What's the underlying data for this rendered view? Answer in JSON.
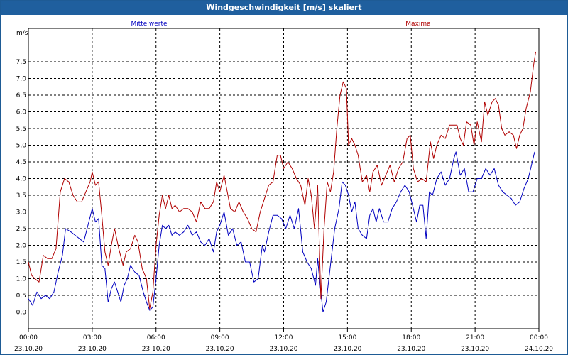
{
  "window": {
    "title": "Windgeschwindigkeit [m/s] skaliert"
  },
  "colors": {
    "title_bar": "#1f5f9e",
    "mittel": "#0000c0",
    "maxima": "#b00000",
    "grid": "#000000"
  },
  "chart_data": {
    "type": "line",
    "title": "Windgeschwindigkeit [m/s] skaliert",
    "ylabel": "m/s",
    "ylim": [
      -0.5,
      8.5
    ],
    "yticks": [
      "0,0",
      "0,5",
      "1,0",
      "1,5",
      "2,0",
      "2,5",
      "3,0",
      "3,5",
      "4,0",
      "4,5",
      "5,0",
      "5,5",
      "6,0",
      "6,5",
      "7,0",
      "7,5"
    ],
    "ytick_values": [
      0,
      0.5,
      1,
      1.5,
      2,
      2.5,
      3,
      3.5,
      4,
      4.5,
      5,
      5.5,
      6,
      6.5,
      7,
      7.5
    ],
    "xlim": [
      0,
      24
    ],
    "xticks": [
      {
        "time": "00:00",
        "date": "23.10.20"
      },
      {
        "time": "03:00",
        "date": "23.10.20"
      },
      {
        "time": "06:00",
        "date": "23.10.20"
      },
      {
        "time": "09:00",
        "date": "23.10.20"
      },
      {
        "time": "12:00",
        "date": "23.10.20"
      },
      {
        "time": "15:00",
        "date": "23.10.20"
      },
      {
        "time": "18:00",
        "date": "23.10.20"
      },
      {
        "time": "21:00",
        "date": "23.10.20"
      },
      {
        "time": "00:00",
        "date": "24.10.20"
      }
    ],
    "xtick_hours": [
      0,
      3,
      6,
      9,
      12,
      15,
      18,
      21,
      24
    ],
    "grid": true,
    "series": [
      {
        "name": "Mittelwerte",
        "color": "#0000c0",
        "points": [
          [
            0,
            0.4
          ],
          [
            0.2,
            0.2
          ],
          [
            0.4,
            0.6
          ],
          [
            0.6,
            0.4
          ],
          [
            0.8,
            0.5
          ],
          [
            1,
            0.4
          ],
          [
            1.2,
            0.6
          ],
          [
            1.4,
            1.2
          ],
          [
            1.6,
            1.7
          ],
          [
            1.75,
            2.5
          ],
          [
            2,
            2.4
          ],
          [
            2.2,
            2.3
          ],
          [
            2.4,
            2.2
          ],
          [
            2.6,
            2.1
          ],
          [
            2.8,
            2.6
          ],
          [
            3,
            3.1
          ],
          [
            3.15,
            2.7
          ],
          [
            3.3,
            2.8
          ],
          [
            3.45,
            1.4
          ],
          [
            3.6,
            1.3
          ],
          [
            3.75,
            0.3
          ],
          [
            3.9,
            0.7
          ],
          [
            4.05,
            0.9
          ],
          [
            4.2,
            0.6
          ],
          [
            4.35,
            0.3
          ],
          [
            4.5,
            0.8
          ],
          [
            4.65,
            1.0
          ],
          [
            4.8,
            1.4
          ],
          [
            5.0,
            1.2
          ],
          [
            5.2,
            1.1
          ],
          [
            5.4,
            0.6
          ],
          [
            5.55,
            0.3
          ],
          [
            5.7,
            0.05
          ],
          [
            5.85,
            0.15
          ],
          [
            6.0,
            1.0
          ],
          [
            6.15,
            2.0
          ],
          [
            6.3,
            2.6
          ],
          [
            6.45,
            2.5
          ],
          [
            6.6,
            2.6
          ],
          [
            6.75,
            2.3
          ],
          [
            6.9,
            2.4
          ],
          [
            7.1,
            2.3
          ],
          [
            7.3,
            2.4
          ],
          [
            7.5,
            2.6
          ],
          [
            7.7,
            2.3
          ],
          [
            7.9,
            2.4
          ],
          [
            8.1,
            2.1
          ],
          [
            8.3,
            2.0
          ],
          [
            8.5,
            2.2
          ],
          [
            8.7,
            1.8
          ],
          [
            8.85,
            2.4
          ],
          [
            9.0,
            2.6
          ],
          [
            9.2,
            3.0
          ],
          [
            9.4,
            2.3
          ],
          [
            9.6,
            2.5
          ],
          [
            9.8,
            2.0
          ],
          [
            10.0,
            2.1
          ],
          [
            10.2,
            1.5
          ],
          [
            10.4,
            1.5
          ],
          [
            10.6,
            0.9
          ],
          [
            10.8,
            1.0
          ],
          [
            11.0,
            2.0
          ],
          [
            11.1,
            1.8
          ],
          [
            11.3,
            2.4
          ],
          [
            11.5,
            2.9
          ],
          [
            11.7,
            2.9
          ],
          [
            11.9,
            2.8
          ],
          [
            12.1,
            2.5
          ],
          [
            12.3,
            2.9
          ],
          [
            12.5,
            2.5
          ],
          [
            12.7,
            3.1
          ],
          [
            12.9,
            1.8
          ],
          [
            13.1,
            1.5
          ],
          [
            13.3,
            1.3
          ],
          [
            13.5,
            0.8
          ],
          [
            13.6,
            1.6
          ],
          [
            13.7,
            0.9
          ],
          [
            13.85,
            0.0
          ],
          [
            14.0,
            0.3
          ],
          [
            14.2,
            1.4
          ],
          [
            14.4,
            2.5
          ],
          [
            14.6,
            3.1
          ],
          [
            14.75,
            3.9
          ],
          [
            14.9,
            3.8
          ],
          [
            15.05,
            3.5
          ],
          [
            15.2,
            3.0
          ],
          [
            15.35,
            3.3
          ],
          [
            15.5,
            2.5
          ],
          [
            15.7,
            2.3
          ],
          [
            15.9,
            2.2
          ],
          [
            16.05,
            2.9
          ],
          [
            16.2,
            3.1
          ],
          [
            16.35,
            2.7
          ],
          [
            16.5,
            3.1
          ],
          [
            16.7,
            2.7
          ],
          [
            16.9,
            2.7
          ],
          [
            17.1,
            3.1
          ],
          [
            17.3,
            3.3
          ],
          [
            17.5,
            3.6
          ],
          [
            17.7,
            3.8
          ],
          [
            17.9,
            3.6
          ],
          [
            18.1,
            3.1
          ],
          [
            18.25,
            2.7
          ],
          [
            18.4,
            3.2
          ],
          [
            18.55,
            3.2
          ],
          [
            18.7,
            2.2
          ],
          [
            18.85,
            3.6
          ],
          [
            19.0,
            3.5
          ],
          [
            19.2,
            4.0
          ],
          [
            19.4,
            4.2
          ],
          [
            19.6,
            3.8
          ],
          [
            19.8,
            4.0
          ],
          [
            20.0,
            4.6
          ],
          [
            20.1,
            4.8
          ],
          [
            20.3,
            4.1
          ],
          [
            20.5,
            4.3
          ],
          [
            20.7,
            3.6
          ],
          [
            20.9,
            3.6
          ],
          [
            21.1,
            4.0
          ],
          [
            21.3,
            4.0
          ],
          [
            21.5,
            4.3
          ],
          [
            21.7,
            4.1
          ],
          [
            21.9,
            4.3
          ],
          [
            22.1,
            3.8
          ],
          [
            22.3,
            3.6
          ],
          [
            22.5,
            3.5
          ],
          [
            22.7,
            3.4
          ],
          [
            22.9,
            3.2
          ],
          [
            23.1,
            3.3
          ],
          [
            23.3,
            3.7
          ],
          [
            23.5,
            4.0
          ],
          [
            23.65,
            4.4
          ],
          [
            23.8,
            4.8
          ]
        ]
      },
      {
        "name": "Maxima",
        "color": "#b00000",
        "points": [
          [
            0,
            1.5
          ],
          [
            0.15,
            1.1
          ],
          [
            0.3,
            1.0
          ],
          [
            0.5,
            0.9
          ],
          [
            0.7,
            1.7
          ],
          [
            0.9,
            1.6
          ],
          [
            1.1,
            1.6
          ],
          [
            1.3,
            1.9
          ],
          [
            1.5,
            3.6
          ],
          [
            1.7,
            4.0
          ],
          [
            1.9,
            3.9
          ],
          [
            2.1,
            3.5
          ],
          [
            2.3,
            3.3
          ],
          [
            2.5,
            3.3
          ],
          [
            2.7,
            3.6
          ],
          [
            2.9,
            3.9
          ],
          [
            3.0,
            4.2
          ],
          [
            3.15,
            3.8
          ],
          [
            3.3,
            3.9
          ],
          [
            3.45,
            2.9
          ],
          [
            3.6,
            1.8
          ],
          [
            3.75,
            1.4
          ],
          [
            3.9,
            2.0
          ],
          [
            4.05,
            2.5
          ],
          [
            4.25,
            1.9
          ],
          [
            4.45,
            1.4
          ],
          [
            4.6,
            1.8
          ],
          [
            4.8,
            1.9
          ],
          [
            5.0,
            2.3
          ],
          [
            5.15,
            2.1
          ],
          [
            5.35,
            1.3
          ],
          [
            5.55,
            1.0
          ],
          [
            5.7,
            0.1
          ],
          [
            5.85,
            0.6
          ],
          [
            6.0,
            2.0
          ],
          [
            6.15,
            2.9
          ],
          [
            6.3,
            3.5
          ],
          [
            6.45,
            3.1
          ],
          [
            6.6,
            3.5
          ],
          [
            6.75,
            3.1
          ],
          [
            6.9,
            3.2
          ],
          [
            7.1,
            3.0
          ],
          [
            7.3,
            3.1
          ],
          [
            7.5,
            3.1
          ],
          [
            7.7,
            3.0
          ],
          [
            7.9,
            2.7
          ],
          [
            8.1,
            3.3
          ],
          [
            8.3,
            3.1
          ],
          [
            8.5,
            3.1
          ],
          [
            8.7,
            3.3
          ],
          [
            8.85,
            3.9
          ],
          [
            9.0,
            3.6
          ],
          [
            9.2,
            4.1
          ],
          [
            9.35,
            3.6
          ],
          [
            9.5,
            3.1
          ],
          [
            9.7,
            3.0
          ],
          [
            9.9,
            3.3
          ],
          [
            10.1,
            3.0
          ],
          [
            10.3,
            2.8
          ],
          [
            10.5,
            2.5
          ],
          [
            10.7,
            2.4
          ],
          [
            10.9,
            3.0
          ],
          [
            11.1,
            3.4
          ],
          [
            11.3,
            3.8
          ],
          [
            11.5,
            3.9
          ],
          [
            11.7,
            4.7
          ],
          [
            11.85,
            4.7
          ],
          [
            12.0,
            4.3
          ],
          [
            12.2,
            4.5
          ],
          [
            12.4,
            4.3
          ],
          [
            12.6,
            4.0
          ],
          [
            12.8,
            3.8
          ],
          [
            13.0,
            3.2
          ],
          [
            13.15,
            4.0
          ],
          [
            13.3,
            3.5
          ],
          [
            13.45,
            2.5
          ],
          [
            13.6,
            3.8
          ],
          [
            13.75,
            0.4
          ],
          [
            13.9,
            2.5
          ],
          [
            14.05,
            3.9
          ],
          [
            14.2,
            3.6
          ],
          [
            14.35,
            4.2
          ],
          [
            14.5,
            5.5
          ],
          [
            14.65,
            6.5
          ],
          [
            14.8,
            6.9
          ],
          [
            14.95,
            6.7
          ],
          [
            15.05,
            5.0
          ],
          [
            15.2,
            5.2
          ],
          [
            15.35,
            5.0
          ],
          [
            15.5,
            4.7
          ],
          [
            15.7,
            3.9
          ],
          [
            15.9,
            4.1
          ],
          [
            16.05,
            3.6
          ],
          [
            16.2,
            4.2
          ],
          [
            16.4,
            4.4
          ],
          [
            16.6,
            3.8
          ],
          [
            16.8,
            4.1
          ],
          [
            17.0,
            4.4
          ],
          [
            17.2,
            3.9
          ],
          [
            17.4,
            4.3
          ],
          [
            17.6,
            4.5
          ],
          [
            17.8,
            5.2
          ],
          [
            17.95,
            5.3
          ],
          [
            18.1,
            4.3
          ],
          [
            18.3,
            3.9
          ],
          [
            18.5,
            4.0
          ],
          [
            18.7,
            3.9
          ],
          [
            18.9,
            5.1
          ],
          [
            19.05,
            4.6
          ],
          [
            19.2,
            5.0
          ],
          [
            19.4,
            5.3
          ],
          [
            19.6,
            5.2
          ],
          [
            19.8,
            5.6
          ],
          [
            20.0,
            5.6
          ],
          [
            20.15,
            5.6
          ],
          [
            20.3,
            5.2
          ],
          [
            20.45,
            5.0
          ],
          [
            20.6,
            5.7
          ],
          [
            20.8,
            5.6
          ],
          [
            20.95,
            5.0
          ],
          [
            21.1,
            5.7
          ],
          [
            21.3,
            5.1
          ],
          [
            21.45,
            6.3
          ],
          [
            21.6,
            5.9
          ],
          [
            21.8,
            6.3
          ],
          [
            21.95,
            6.4
          ],
          [
            22.1,
            6.2
          ],
          [
            22.25,
            5.5
          ],
          [
            22.4,
            5.3
          ],
          [
            22.6,
            5.4
          ],
          [
            22.8,
            5.3
          ],
          [
            22.95,
            4.9
          ],
          [
            23.1,
            5.3
          ],
          [
            23.25,
            5.5
          ],
          [
            23.4,
            6.1
          ],
          [
            23.6,
            6.6
          ],
          [
            23.75,
            7.4
          ],
          [
            23.85,
            7.8
          ]
        ]
      }
    ]
  }
}
